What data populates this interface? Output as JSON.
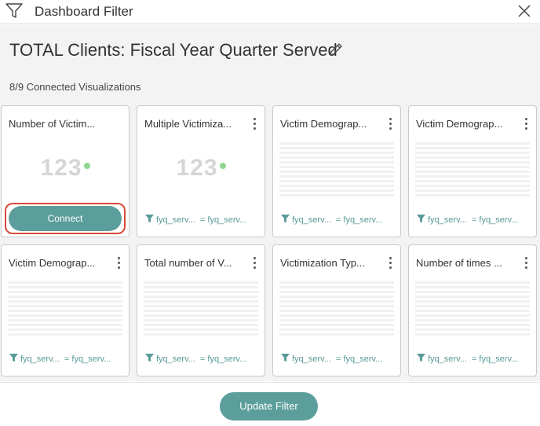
{
  "header": {
    "title": "Dashboard Filter",
    "filter_icon": "filter-icon",
    "close_icon": "close-icon"
  },
  "page": {
    "title": "TOTAL Clients: Fiscal Year Quarter Served",
    "edit_icon": "pencil-icon",
    "connected_count": "8/9 Connected Visualizations"
  },
  "cards": [
    {
      "title": "Number of Victim...",
      "viz": "number",
      "number": "123",
      "action": "Connect"
    },
    {
      "title": "Multiple Victimiza...",
      "viz": "number",
      "number": "123",
      "filter_label": "fyq_serv...",
      "filter_value": "= fyq_serv..."
    },
    {
      "title": "Victim Demograp...",
      "viz": "table",
      "filter_label": "fyq_serv...",
      "filter_value": "= fyq_serv..."
    },
    {
      "title": "Victim Demograp...",
      "viz": "table",
      "filter_label": "fyq_serv...",
      "filter_value": "= fyq_serv..."
    },
    {
      "title": "Victim Demograp...",
      "viz": "table",
      "filter_label": "fyq_serv...",
      "filter_value": "= fyq_serv..."
    },
    {
      "title": "Total number of V...",
      "viz": "table",
      "filter_label": "fyq_serv...",
      "filter_value": "= fyq_serv..."
    },
    {
      "title": "Victimization Typ...",
      "viz": "table",
      "filter_label": "fyq_serv...",
      "filter_value": "= fyq_serv..."
    },
    {
      "title": "Number of times ...",
      "viz": "table",
      "filter_label": "fyq_serv...",
      "filter_value": "= fyq_serv..."
    }
  ],
  "footer": {
    "update_label": "Update Filter"
  },
  "colors": {
    "accent": "#5b9e9b",
    "highlight": "#d9493a",
    "dot": "#8fd68f"
  }
}
